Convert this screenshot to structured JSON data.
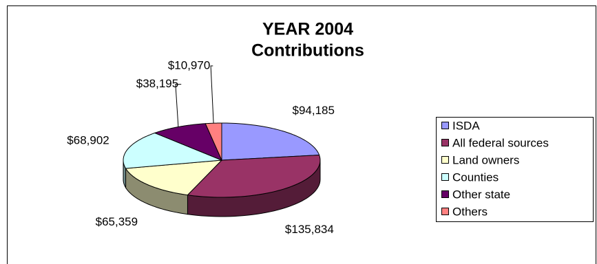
{
  "chart_data": {
    "type": "pie",
    "title": [
      "YEAR 2004",
      "Contributions"
    ],
    "categories": [
      "ISDA",
      "All federal sources",
      "Land owners",
      "Counties",
      "Other state",
      "Others"
    ],
    "values": [
      94185,
      135834,
      65359,
      68902,
      38195,
      10970
    ],
    "value_labels": [
      "$94,185",
      "$135,834",
      "$65,359",
      "$68,902",
      "$38,195",
      "$10,970"
    ],
    "colors": [
      "#9999ff",
      "#993366",
      "#ffffcc",
      "#ccffff",
      "#660066",
      "#ff8080"
    ],
    "legend": "right"
  }
}
